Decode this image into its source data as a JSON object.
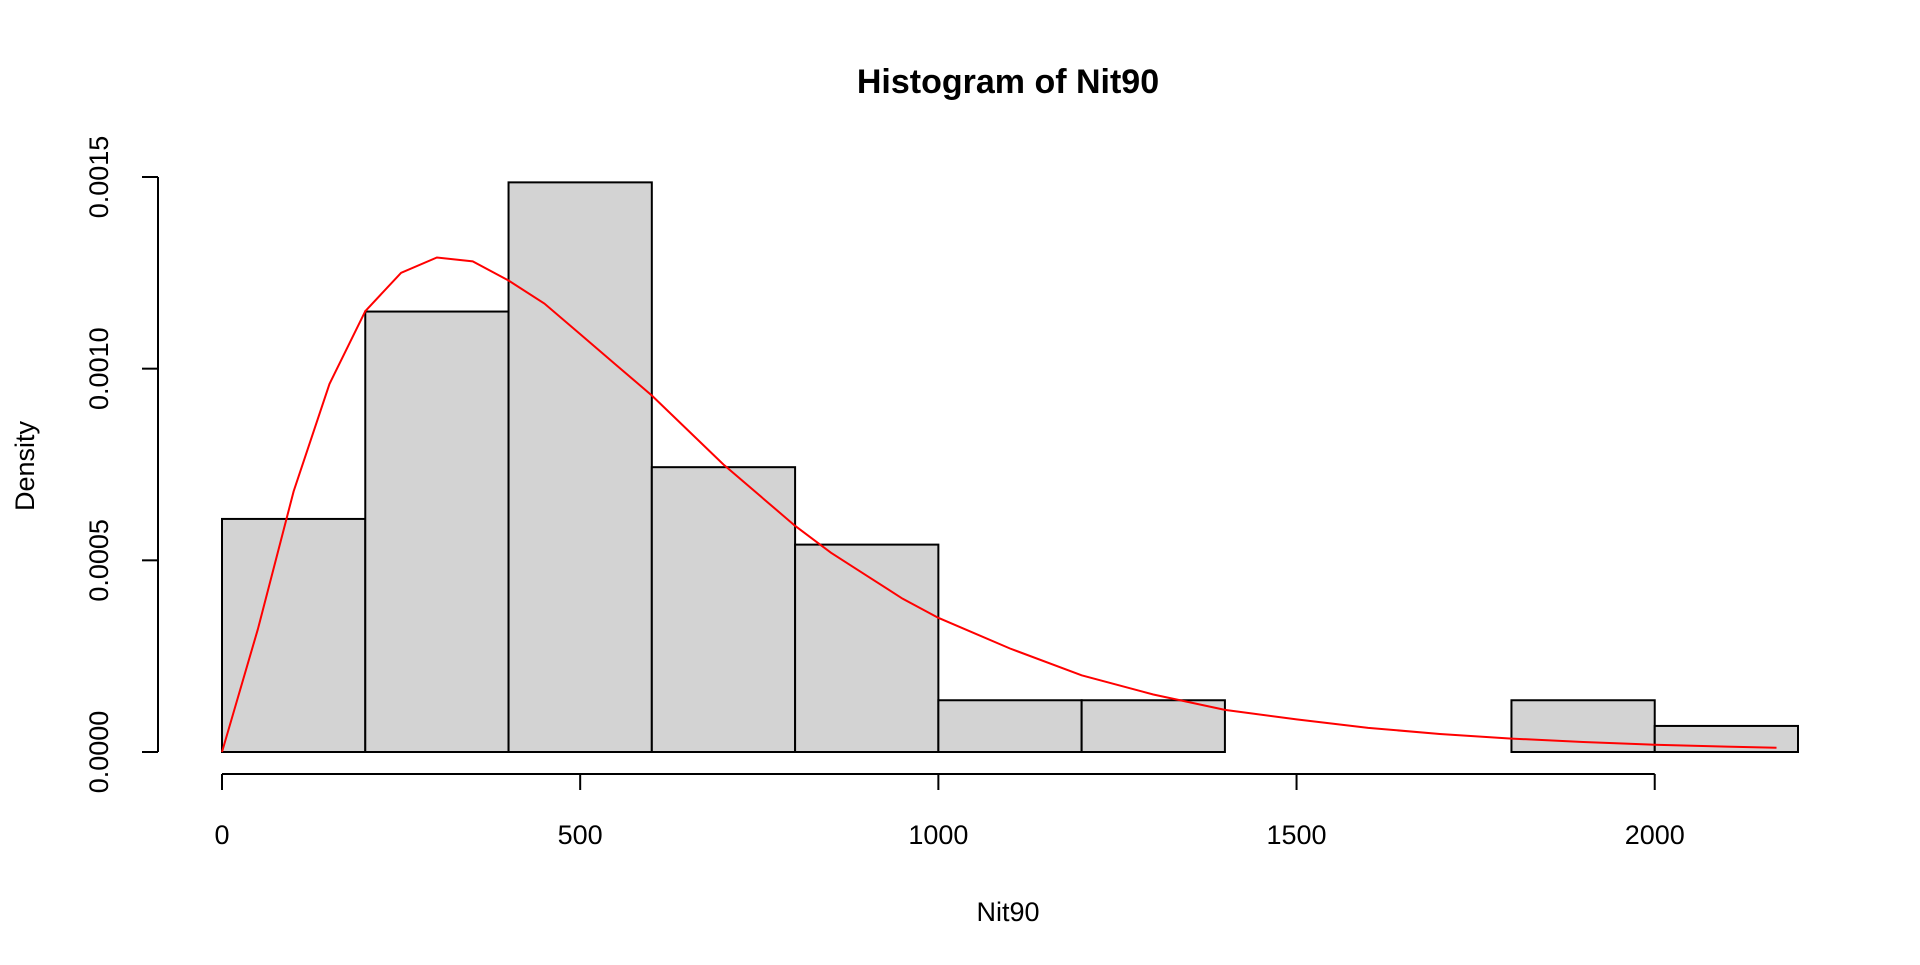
{
  "chart_data": {
    "type": "histogram",
    "title": "Histogram of Nit90",
    "xlabel": "Nit90",
    "ylabel": "Density",
    "xlim": [
      0,
      2200
    ],
    "ylim": [
      0,
      0.0015
    ],
    "x_ticks": [
      0,
      500,
      1000,
      1500,
      2000
    ],
    "x_tick_labels": [
      "0",
      "500",
      "1000",
      "1500",
      "2000"
    ],
    "y_ticks": [
      0,
      0.0005,
      0.001,
      0.0015
    ],
    "y_tick_labels": [
      "0.0000",
      "0.0005",
      "0.0010",
      "0.0015"
    ],
    "bins": [
      {
        "start": 0,
        "end": 200,
        "density": 0.000608
      },
      {
        "start": 200,
        "end": 400,
        "density": 0.001149
      },
      {
        "start": 400,
        "end": 600,
        "density": 0.001486
      },
      {
        "start": 600,
        "end": 800,
        "density": 0.000743
      },
      {
        "start": 800,
        "end": 1000,
        "density": 0.000541
      },
      {
        "start": 1000,
        "end": 1200,
        "density": 0.000135
      },
      {
        "start": 1200,
        "end": 1400,
        "density": 0.000135
      },
      {
        "start": 1400,
        "end": 1600,
        "density": 0
      },
      {
        "start": 1600,
        "end": 1800,
        "density": 0
      },
      {
        "start": 1800,
        "end": 2000,
        "density": 0.000135
      },
      {
        "start": 2000,
        "end": 2200,
        "density": 6.8e-05
      }
    ],
    "bar_fill": "#d3d3d3",
    "bar_stroke": "#000000",
    "density_curve": {
      "color": "#ff0000",
      "points": [
        [
          0,
          0
        ],
        [
          50,
          0.00032
        ],
        [
          100,
          0.00068
        ],
        [
          150,
          0.00096
        ],
        [
          200,
          0.00115
        ],
        [
          250,
          0.00125
        ],
        [
          300,
          0.00129
        ],
        [
          350,
          0.00128
        ],
        [
          400,
          0.00123
        ],
        [
          450,
          0.00117
        ],
        [
          500,
          0.00109
        ],
        [
          550,
          0.00101
        ],
        [
          600,
          0.00093
        ],
        [
          650,
          0.00084
        ],
        [
          700,
          0.00075
        ],
        [
          750,
          0.00067
        ],
        [
          800,
          0.00059
        ],
        [
          850,
          0.00052
        ],
        [
          900,
          0.00046
        ],
        [
          950,
          0.0004
        ],
        [
          1000,
          0.00035
        ],
        [
          1100,
          0.00027
        ],
        [
          1200,
          0.0002
        ],
        [
          1300,
          0.00015
        ],
        [
          1400,
          0.00011
        ],
        [
          1500,
          8.5e-05
        ],
        [
          1600,
          6.3e-05
        ],
        [
          1700,
          4.7e-05
        ],
        [
          1800,
          3.5e-05
        ],
        [
          1900,
          2.6e-05
        ],
        [
          2000,
          1.9e-05
        ],
        [
          2100,
          1.4e-05
        ],
        [
          2170,
          1.1e-05
        ]
      ]
    },
    "grid": false,
    "legend": "none"
  }
}
